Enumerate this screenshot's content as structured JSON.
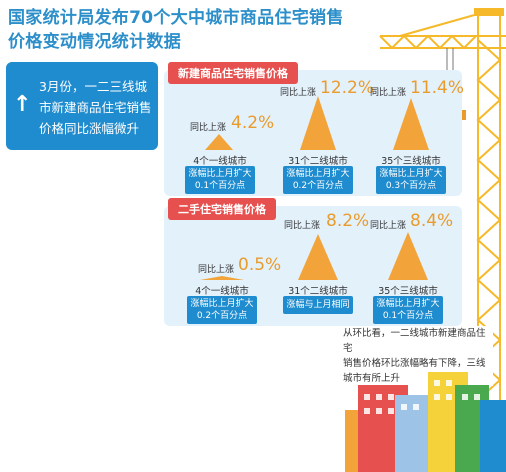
{
  "title": {
    "line1": "国家统计局发布70个大中城市商品住宅销售",
    "line2": "价格变动情况统计数据"
  },
  "callout": {
    "arrow": "↑",
    "line1": "3月份，一二三线城",
    "line2": "市新建商品住宅销售",
    "line3": "价格同比涨幅微升"
  },
  "new_homes": {
    "label": "新建商品住宅销售价格",
    "items": [
      {
        "prefix": "同比上涨",
        "value": "4.2%",
        "city": "4个一线城市",
        "note1": "涨幅比上月扩大",
        "note2": "0.1个百分点"
      },
      {
        "prefix": "同比上涨",
        "value": "12.2%",
        "city": "31个二线城市",
        "note1": "涨幅比上月扩大",
        "note2": "0.2个百分点"
      },
      {
        "prefix": "同比上涨",
        "value": "11.4%",
        "city": "35个三线城市",
        "note1": "涨幅比上月扩大",
        "note2": "0.3个百分点"
      }
    ]
  },
  "second_hand": {
    "label": "二手住宅销售价格",
    "items": [
      {
        "prefix": "同比上涨",
        "value": "0.5%",
        "city": "4个一线城市",
        "note1": "涨幅比上月扩大",
        "note2": "0.2个百分点"
      },
      {
        "prefix": "同比上涨",
        "value": "8.2%",
        "city": "31个二线城市",
        "note1": "涨幅与上月相同",
        "note2": ""
      },
      {
        "prefix": "同比上涨",
        "value": "8.4%",
        "city": "35个三线城市",
        "note1": "涨幅比上月扩大",
        "note2": "0.1个百分点"
      }
    ]
  },
  "note": {
    "line1": "从环比看，一二线城市新建商品住宅",
    "line2": "销售价格环比涨幅略有下降，三线",
    "line3": "城市有所上升"
  },
  "colors": {
    "accent": "#1f8ccf",
    "title": "#2d8fca",
    "triangle": "#f2a43a",
    "label": "#e6504f",
    "crane": "#f5b92a"
  }
}
